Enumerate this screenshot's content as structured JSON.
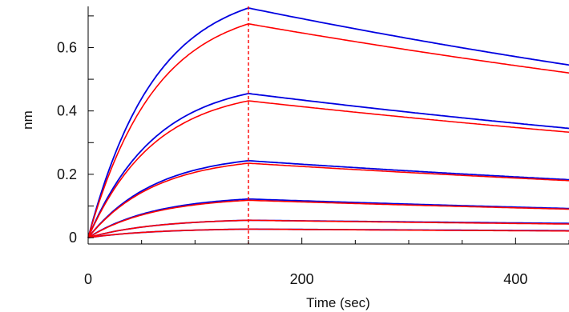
{
  "chart_data": {
    "type": "line",
    "title": "",
    "xlabel": "Time (sec)",
    "ylabel": "nm",
    "xlim": [
      0,
      450
    ],
    "ylim": [
      -0.02,
      0.73
    ],
    "x_ticks": [
      0,
      200,
      400
    ],
    "x_tick_labels": [
      "0",
      "200",
      "400"
    ],
    "y_ticks": [
      0,
      0.2,
      0.4,
      0.6
    ],
    "y_tick_labels": [
      "0",
      "0.2",
      "0.4",
      "0.6"
    ],
    "grid": false,
    "legend": "none",
    "association_end_sec": 150,
    "colors": {
      "measured": "#0000e0",
      "fit": "#ff0000",
      "marker": "#ff0000",
      "axis": "#000000",
      "background": "#ffffff"
    },
    "series": [
      {
        "role": "measured",
        "peak": 0.725,
        "end": 0.545
      },
      {
        "role": "measured",
        "peak": 0.455,
        "end": 0.345
      },
      {
        "role": "measured",
        "peak": 0.243,
        "end": 0.183
      },
      {
        "role": "measured",
        "peak": 0.122,
        "end": 0.092
      },
      {
        "role": "measured",
        "peak": 0.055,
        "end": 0.045
      },
      {
        "role": "measured",
        "peak": 0.027,
        "end": 0.022
      },
      {
        "role": "fit",
        "peak": 0.675,
        "end": 0.52
      },
      {
        "role": "fit",
        "peak": 0.432,
        "end": 0.333
      },
      {
        "role": "fit",
        "peak": 0.235,
        "end": 0.18
      },
      {
        "role": "fit",
        "peak": 0.118,
        "end": 0.09
      },
      {
        "role": "fit",
        "peak": 0.055,
        "end": 0.043
      },
      {
        "role": "fit",
        "peak": 0.027,
        "end": 0.021
      }
    ]
  }
}
